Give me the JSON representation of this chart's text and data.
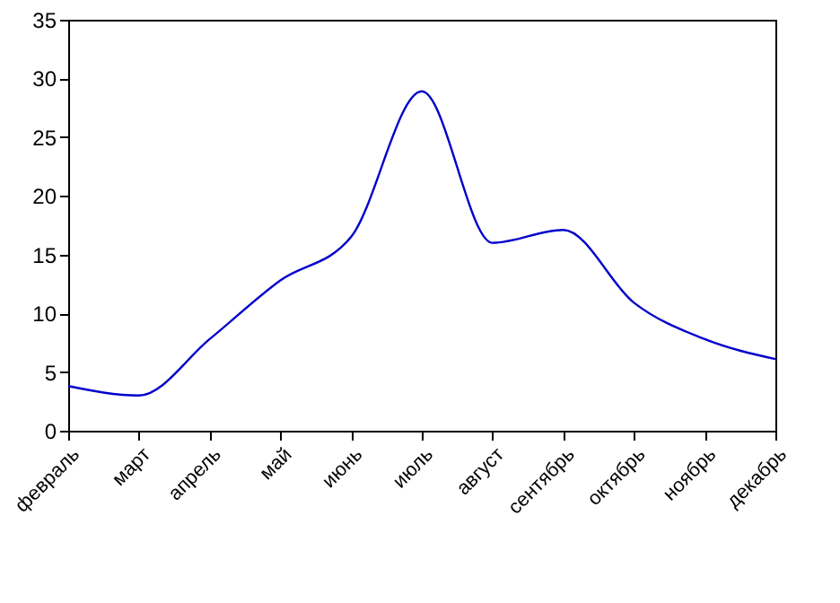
{
  "chart_data": {
    "type": "line",
    "categories": [
      "февраль",
      "март",
      "апрель",
      "май",
      "июнь",
      "июль",
      "август",
      "сентябрь",
      "октябрь",
      "ноябрь",
      "декабрь"
    ],
    "series": [
      {
        "color": "#0000cc",
        "values": [
          3.8,
          3.0,
          7.8,
          12.8,
          16.5,
          28.9,
          16.0,
          17.1,
          10.9,
          7.8,
          6.1
        ]
      }
    ],
    "ylim": [
      0,
      35
    ],
    "yticks": [
      0,
      5,
      10,
      15,
      20,
      25,
      30,
      35
    ],
    "grid": false,
    "marker": "none",
    "line_style": "solid"
  }
}
